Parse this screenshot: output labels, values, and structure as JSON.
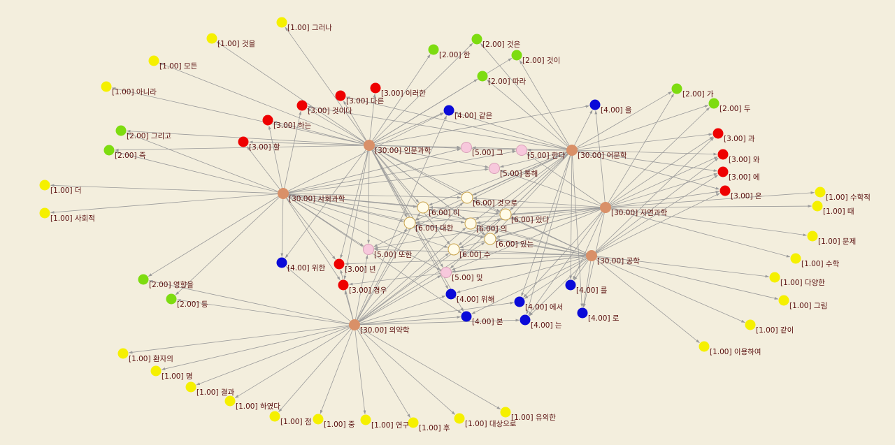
{
  "palette": {
    "background": "#f3eedd",
    "edge": "#9a9a9a",
    "label": "#5a1010",
    "w30": "#d99068",
    "w6": "#fffbe8",
    "w5": "#f7c8dc",
    "w4": "#0a0ad8",
    "w3": "#ee0000",
    "w2": "#7ddc10",
    "w1": "#f5f000"
  },
  "nodes": [
    {
      "id": "humanities",
      "label": "[30.00] 인문과학",
      "weight": 30
    },
    {
      "id": "language",
      "label": "[30.00] 어문학",
      "weight": 30
    },
    {
      "id": "social",
      "label": "[30.00] 사회과학",
      "weight": 30
    },
    {
      "id": "natural",
      "label": "[30.00] 자연과학",
      "weight": 30
    },
    {
      "id": "engineering",
      "label": "[30.00] 공학",
      "weight": 30
    },
    {
      "id": "medicine",
      "label": "[30.00] 의약학",
      "weight": 30
    },
    {
      "id": "i",
      "label": "[6.00] 이",
      "weight": 6
    },
    {
      "id": "geoseuro",
      "label": "[6.00] 것으로",
      "weight": 6
    },
    {
      "id": "daehan",
      "label": "[6.00] 대한",
      "weight": 6
    },
    {
      "id": "ui",
      "label": "[6.00] 의",
      "weight": 6
    },
    {
      "id": "itda",
      "label": "[6.00] 있다",
      "weight": 6
    },
    {
      "id": "inneun",
      "label": "[6.00] 있는",
      "weight": 6
    },
    {
      "id": "su",
      "label": "[6.00] 수",
      "weight": 6
    },
    {
      "id": "geu",
      "label": "[5.00] 그",
      "weight": 5
    },
    {
      "id": "handa",
      "label": "[5.00] 한다",
      "weight": 5
    },
    {
      "id": "tonghae",
      "label": "[5.00] 통해",
      "weight": 5
    },
    {
      "id": "ttohan",
      "label": "[5.00] 또한",
      "weight": 5
    },
    {
      "id": "mit",
      "label": "[5.00] 및",
      "weight": 5
    },
    {
      "id": "gateun",
      "label": "[4.00] 같은",
      "weight": 4
    },
    {
      "id": "eul",
      "label": "[4.00] 을",
      "weight": 4
    },
    {
      "id": "wihan",
      "label": "[4.00] 위한",
      "weight": 4
    },
    {
      "id": "reul",
      "label": "[4.00] 를",
      "weight": 4
    },
    {
      "id": "wihae",
      "label": "[4.00] 위해",
      "weight": 4
    },
    {
      "id": "eseo",
      "label": "[4.00] 에서",
      "weight": 4
    },
    {
      "id": "bon",
      "label": "[4.00] 본",
      "weight": 4
    },
    {
      "id": "neun",
      "label": "[4.00] 는",
      "weight": 4
    },
    {
      "id": "ro",
      "label": "[4.00] 로",
      "weight": 4
    },
    {
      "id": "ireohan",
      "label": "[3.00] 이러한",
      "weight": 3
    },
    {
      "id": "dareun",
      "label": "[3.00] 다른",
      "weight": 3
    },
    {
      "id": "geosida",
      "label": "[3.00] 것이다",
      "weight": 3
    },
    {
      "id": "haneun",
      "label": "[3.00] 하는",
      "weight": 3
    },
    {
      "id": "hal",
      "label": "[3.00] 할",
      "weight": 3
    },
    {
      "id": "gwa",
      "label": "[3.00] 과",
      "weight": 3
    },
    {
      "id": "wa",
      "label": "[3.00] 와",
      "weight": 3
    },
    {
      "id": "e",
      "label": "[3.00] 에",
      "weight": 3
    },
    {
      "id": "eun",
      "label": "[3.00] 은",
      "weight": 3
    },
    {
      "id": "nyeon",
      "label": "[3.00] 년",
      "weight": 3
    },
    {
      "id": "gyeongu",
      "label": "[3.00] 경우",
      "weight": 3
    },
    {
      "id": "han",
      "label": "[2.00] 한",
      "weight": 2
    },
    {
      "id": "geoseun",
      "label": "[2.00] 것은",
      "weight": 2
    },
    {
      "id": "geosi",
      "label": "[2.00] 것이",
      "weight": 2
    },
    {
      "id": "ttara",
      "label": "[2.00] 따라",
      "weight": 2
    },
    {
      "id": "ga",
      "label": "[2.00] 가",
      "weight": 2
    },
    {
      "id": "du",
      "label": "[2.00] 두",
      "weight": 2
    },
    {
      "id": "geurigo",
      "label": "[2.00] 그리고",
      "weight": 2
    },
    {
      "id": "jeuk",
      "label": "[2.00] 즉",
      "weight": 2
    },
    {
      "id": "yeonghyang",
      "label": "[2.00] 영향을",
      "weight": 2
    },
    {
      "id": "deung",
      "label": "[2.00] 등",
      "weight": 2
    },
    {
      "id": "geureona",
      "label": "[1.00] 그러나",
      "weight": 1
    },
    {
      "id": "geoseul",
      "label": "[1.00] 것을",
      "weight": 1
    },
    {
      "id": "modeun",
      "label": "[1.00] 모든",
      "weight": 1
    },
    {
      "id": "anira",
      "label": "[1.00] 아니라",
      "weight": 1
    },
    {
      "id": "deo",
      "label": "[1.00] 더",
      "weight": 1
    },
    {
      "id": "sahoejeok",
      "label": "[1.00] 사회적",
      "weight": 1
    },
    {
      "id": "suhakjeok",
      "label": "[1.00] 수학적",
      "weight": 1
    },
    {
      "id": "ttae",
      "label": "[1.00] 때",
      "weight": 1
    },
    {
      "id": "munje",
      "label": "[1.00] 문제",
      "weight": 1
    },
    {
      "id": "suhak",
      "label": "[1.00] 수학",
      "weight": 1
    },
    {
      "id": "dayanghan",
      "label": "[1.00] 다양한",
      "weight": 1
    },
    {
      "id": "geurim",
      "label": "[1.00] 그림",
      "weight": 1
    },
    {
      "id": "gachi",
      "label": "[1.00] 같이",
      "weight": 1
    },
    {
      "id": "iyonghayeo",
      "label": "[1.00] 이용하여",
      "weight": 1
    },
    {
      "id": "hwanjaui",
      "label": "[1.00] 환자의",
      "weight": 1
    },
    {
      "id": "myeong",
      "label": "[1.00] 명",
      "weight": 1
    },
    {
      "id": "gyeolgwa",
      "label": "[1.00] 결과",
      "weight": 1
    },
    {
      "id": "hayeotda",
      "label": "[1.00] 하였다",
      "weight": 1
    },
    {
      "id": "jeom",
      "label": "[1.00] 점",
      "weight": 1
    },
    {
      "id": "jung",
      "label": "[1.00] 중",
      "weight": 1
    },
    {
      "id": "yeongu",
      "label": "[1.00] 연구",
      "weight": 1
    },
    {
      "id": "hu",
      "label": "[1.00] 후",
      "weight": 1
    },
    {
      "id": "daesangeuro",
      "label": "[1.00] 대상으로",
      "weight": 1
    },
    {
      "id": "yuuihan",
      "label": "[1.00] 유의한",
      "weight": 1
    }
  ],
  "edges": [
    [
      "humanities",
      [
        "i",
        "geoseuro",
        "daehan",
        "ui",
        "itda",
        "inneun",
        "su",
        "geu",
        "handa",
        "tonghae",
        "ttohan",
        "mit",
        "gateun",
        "eul",
        "wihan",
        "wihae",
        "bon",
        "ireohan",
        "dareun",
        "geosida",
        "haneun",
        "hal",
        "nyeon",
        "gyeongu",
        "han",
        "geoseun",
        "geosi",
        "ttara",
        "geurigo",
        "jeuk",
        "geureona",
        "geoseul",
        "modeun",
        "anira"
      ]
    ],
    [
      "language",
      [
        "i",
        "geoseuro",
        "daehan",
        "ui",
        "itda",
        "inneun",
        "su",
        "geu",
        "handa",
        "tonghae",
        "ttohan",
        "mit",
        "gateun",
        "eul",
        "reul",
        "eseo",
        "neun",
        "ro",
        "dareun",
        "geosida",
        "gwa",
        "wa",
        "e",
        "eun",
        "geoseun",
        "geosi",
        "ttara",
        "ga",
        "du"
      ]
    ],
    [
      "social",
      [
        "i",
        "geoseuro",
        "daehan",
        "ui",
        "itda",
        "inneun",
        "su",
        "geu",
        "handa",
        "tonghae",
        "ttohan",
        "mit",
        "wihan",
        "bon",
        "hal",
        "haneun",
        "nyeon",
        "gyeongu",
        "gateun",
        "geurigo",
        "jeuk",
        "yeonghyang",
        "deung",
        "deo",
        "sahoejeok",
        "geosida"
      ]
    ],
    [
      "natural",
      [
        "i",
        "geoseuro",
        "daehan",
        "ui",
        "itda",
        "inneun",
        "su",
        "handa",
        "tonghae",
        "ttohan",
        "mit",
        "eul",
        "reul",
        "eseo",
        "neun",
        "ro",
        "gwa",
        "wa",
        "e",
        "eun",
        "ga",
        "du",
        "suhakjeok",
        "ttae",
        "munje",
        "suhak"
      ]
    ],
    [
      "engineering",
      [
        "i",
        "geoseuro",
        "daehan",
        "ui",
        "itda",
        "inneun",
        "su",
        "ttohan",
        "mit",
        "wihae",
        "eseo",
        "bon",
        "neun",
        "ro",
        "reul",
        "gyeongu",
        "nyeon",
        "gwa",
        "wa",
        "e",
        "eun",
        "dayanghan",
        "geurim",
        "gachi",
        "iyonghayeo"
      ]
    ],
    [
      "medicine",
      [
        "i",
        "geoseuro",
        "daehan",
        "ui",
        "itda",
        "inneun",
        "su",
        "ttohan",
        "mit",
        "wihae",
        "eseo",
        "bon",
        "neun",
        "wihan",
        "nyeon",
        "gyeongu",
        "yeonghyang",
        "deung",
        "hwanjaui",
        "myeong",
        "gyeolgwa",
        "hayeotda",
        "jeom",
        "jung",
        "yeongu",
        "hu",
        "daesangeuro",
        "yuuihan",
        "gateun"
      ]
    ]
  ]
}
